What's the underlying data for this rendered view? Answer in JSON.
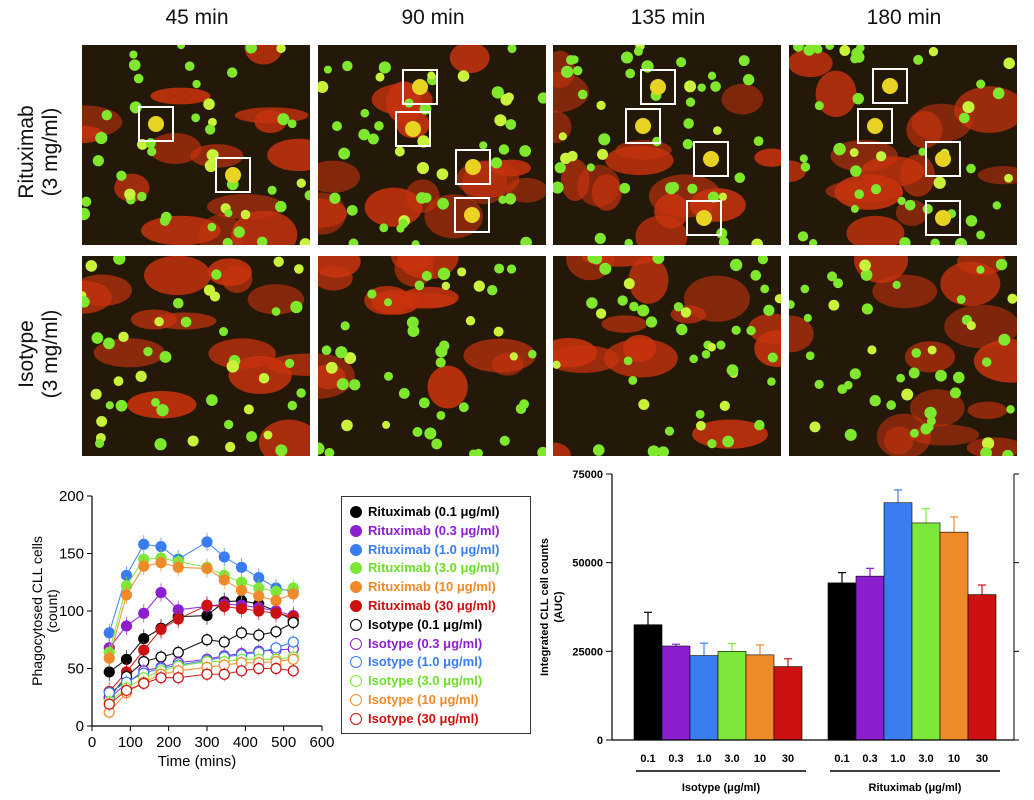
{
  "time_titles": [
    "45 min",
    "90 min",
    "135 min",
    "180 min"
  ],
  "row_labels": [
    {
      "line1": "Rituximab",
      "line2": "(3 mg/ml)"
    },
    {
      "line1": "Isotype",
      "line2": "(3 mg/ml)"
    }
  ],
  "legend": [
    {
      "label": "Rituximab (0.1 μg/ml)",
      "color": "#000000",
      "filled": true
    },
    {
      "label": "Rituximab (0.3 μg/ml)",
      "color": "#8b1fd0",
      "filled": true
    },
    {
      "label": "Rituximab (1.0 μg/ml)",
      "color": "#3a7df0",
      "filled": true
    },
    {
      "label": "Rituximab (3.0 μg/ml)",
      "color": "#7ee83a",
      "filled": true
    },
    {
      "label": "Rituximab (10 μg/ml)",
      "color": "#ef8a2a",
      "filled": true
    },
    {
      "label": "Rituximab (30 μg/ml)",
      "color": "#cc1111",
      "filled": true
    },
    {
      "label": "Isotype (0.1 μg/ml)",
      "color": "#000000",
      "filled": false
    },
    {
      "label": "Isotype (0.3 μg/ml)",
      "color": "#8b1fd0",
      "filled": false
    },
    {
      "label": "Isotype (1.0 μg/ml)",
      "color": "#3a7df0",
      "filled": false
    },
    {
      "label": "Isotype (3.0 μg/ml)",
      "color": "#7ee83a",
      "filled": false
    },
    {
      "label": "Isotype (10 μg/ml)",
      "color": "#ef8a2a",
      "filled": false
    },
    {
      "label": "Isotype (30 μg/ml)",
      "color": "#cc1111",
      "filled": false
    }
  ],
  "chart_data": [
    {
      "type": "line",
      "xlabel": "Time  (mins)",
      "ylabel": "Phagocytosed CLL cells (count)",
      "xlim": [
        0,
        600
      ],
      "ylim": [
        0,
        200
      ],
      "xticks": [
        0,
        100,
        200,
        300,
        400,
        500,
        600
      ],
      "yticks": [
        0,
        50,
        100,
        150,
        200
      ],
      "x": [
        45,
        90,
        135,
        180,
        225,
        300,
        345,
        390,
        435,
        480,
        525
      ],
      "series": [
        {
          "name": "Rituximab (0.1 μg/ml)",
          "color": "#000000",
          "filled": true,
          "values": [
            47,
            58,
            76,
            85,
            95,
            96,
            108,
            109,
            106,
            100,
            92
          ]
        },
        {
          "name": "Rituximab (0.3 μg/ml)",
          "color": "#8b1fd0",
          "filled": true,
          "values": [
            68,
            87,
            98,
            116,
            101,
            104,
            106,
            105,
            103,
            100,
            96
          ]
        },
        {
          "name": "Rituximab (1.0 μg/ml)",
          "color": "#3a7df0",
          "filled": true,
          "values": [
            81,
            131,
            158,
            156,
            145,
            160,
            147,
            138,
            129,
            120,
            117
          ]
        },
        {
          "name": "Rituximab (3.0 μg/ml)",
          "color": "#7ee83a",
          "filled": true,
          "values": [
            64,
            122,
            145,
            146,
            143,
            138,
            131,
            125,
            120,
            117,
            120
          ]
        },
        {
          "name": "Rituximab (10 μg/ml)",
          "color": "#ef8a2a",
          "filled": true,
          "values": [
            59,
            114,
            139,
            142,
            138,
            137,
            127,
            118,
            113,
            109,
            115
          ]
        },
        {
          "name": "Rituximab (30 μg/ml)",
          "color": "#cc1111",
          "filled": true,
          "values": [
            30,
            47,
            66,
            84,
            93,
            105,
            104,
            102,
            100,
            98,
            95
          ]
        },
        {
          "name": "Isotype (0.1 μg/ml)",
          "color": "#000000",
          "filled": false,
          "values": [
            25,
            43,
            56,
            60,
            64,
            75,
            73,
            81,
            79,
            82,
            90
          ]
        },
        {
          "name": "Isotype (0.3 μg/ml)",
          "color": "#8b1fd0",
          "filled": false,
          "values": [
            24,
            37,
            48,
            51,
            55,
            58,
            61,
            63,
            65,
            66,
            67
          ]
        },
        {
          "name": "Isotype (1.0 μg/ml)",
          "color": "#3a7df0",
          "filled": false,
          "values": [
            29,
            38,
            46,
            50,
            53,
            57,
            60,
            62,
            64,
            68,
            73
          ]
        },
        {
          "name": "Isotype (3.0 μg/ml)",
          "color": "#7ee83a",
          "filled": false,
          "values": [
            21,
            33,
            42,
            48,
            52,
            56,
            56,
            58,
            58,
            58,
            60
          ]
        },
        {
          "name": "Isotype (10 μg/ml)",
          "color": "#ef8a2a",
          "filled": false,
          "values": [
            12,
            29,
            38,
            45,
            48,
            51,
            53,
            55,
            55,
            56,
            58
          ]
        },
        {
          "name": "Isotype (30 μg/ml)",
          "color": "#cc1111",
          "filled": false,
          "values": [
            19,
            31,
            37,
            42,
            42,
            45,
            45,
            48,
            50,
            50,
            48
          ]
        }
      ]
    },
    {
      "type": "bar",
      "ylabel": "Integrated CLL cell counts (AUC)",
      "ylim": [
        0,
        75000
      ],
      "yticks": [
        0,
        25000,
        50000,
        75000
      ],
      "groups": [
        {
          "name": "Isotype (μg/ml)",
          "categories": [
            "0.1",
            "0.3",
            "1.0",
            "3.0",
            "10",
            "30"
          ],
          "values": [
            32500,
            26500,
            23800,
            25000,
            24000,
            20700
          ],
          "errors": [
            3500,
            500,
            3500,
            2200,
            2800,
            2200
          ]
        },
        {
          "name": "Rituximab (μg/ml)",
          "categories": [
            "0.1",
            "0.3",
            "1.0",
            "3.0",
            "10",
            "30"
          ],
          "values": [
            44300,
            46200,
            66900,
            61200,
            58600,
            41000
          ],
          "errors": [
            2900,
            2200,
            3600,
            4000,
            4300,
            2700
          ]
        }
      ],
      "bar_colors": [
        "#000000",
        "#8b1fd0",
        "#3a7df0",
        "#7ee83a",
        "#ef8a2a",
        "#cc1111"
      ]
    }
  ]
}
